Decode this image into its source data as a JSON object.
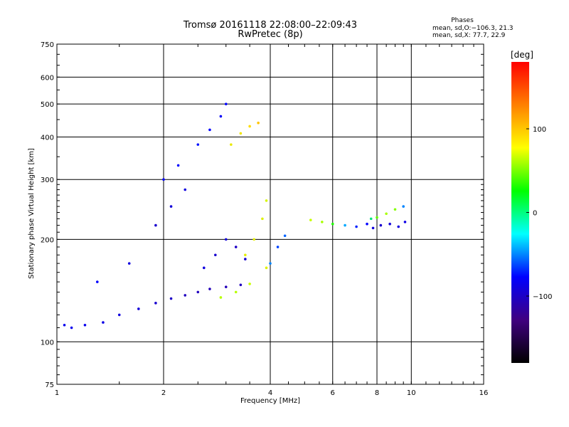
{
  "chart_data": {
    "type": "scatter",
    "title": "Tromsø 20161118 22:08:00–22:09:43",
    "subtitle": "RwPretec (8p)",
    "xlabel": "Frequency [MHz]",
    "ylabel": "Stationary phase Virtual Height [km]",
    "x_scale": "log",
    "y_scale": "log",
    "xlim": [
      1,
      16
    ],
    "ylim": [
      75,
      750
    ],
    "x_ticks": [
      "1",
      "2",
      "4",
      "6",
      "8",
      "10",
      "16"
    ],
    "x_tick_values": [
      1,
      2,
      4,
      6,
      8,
      10,
      16
    ],
    "y_ticks": [
      "75",
      "100",
      "200",
      "300",
      "400",
      "500",
      "600",
      "750"
    ],
    "y_tick_values": [
      75,
      100,
      200,
      300,
      400,
      500,
      600,
      750
    ],
    "grid": true,
    "legend": {
      "heading": "Phases",
      "lines": [
        "mean, sd,O:−106.3, 21.3",
        "mean, sd,X:  77.7, 22.9"
      ],
      "placement": "top-right"
    },
    "colorbar": {
      "label": "[deg]",
      "range": [
        -180,
        180
      ],
      "ticks": [
        "100",
        "0",
        "−100"
      ],
      "tick_values": [
        100,
        0,
        -100
      ],
      "colors": [
        "#ff0000",
        "#ff8000",
        "#ffff00",
        "#00ff00",
        "#00ffff",
        "#0000ff",
        "#400080",
        "#000000"
      ]
    },
    "point_groups": [
      {
        "x": [
          1.05,
          1.1,
          1.2,
          1.35,
          1.5,
          1.7,
          1.9,
          2.1,
          2.3,
          2.5,
          2.7,
          3.0,
          3.3
        ],
        "y": [
          112,
          110,
          112,
          114,
          120,
          125,
          130,
          134,
          137,
          140,
          143,
          145,
          147
        ],
        "phase": [
          -105,
          -105,
          -105,
          -108,
          -110,
          -112,
          -115,
          -118,
          -120,
          -120,
          -122,
          -122,
          -120
        ]
      },
      {
        "x": [
          1.3,
          1.6,
          1.9,
          2.1,
          2.3
        ],
        "y": [
          150,
          170,
          220,
          250,
          280
        ],
        "phase": [
          -100,
          -110,
          -115,
          -112,
          -110
        ]
      },
      {
        "x": [
          2.0,
          2.2,
          2.5,
          2.7,
          2.9,
          3.0
        ],
        "y": [
          300,
          330,
          380,
          420,
          460,
          500
        ],
        "phase": [
          -100,
          -98,
          -95,
          -100,
          -102,
          -100
        ]
      },
      {
        "x": [
          2.6,
          2.8,
          3.0,
          3.2,
          3.4
        ],
        "y": [
          165,
          180,
          200,
          190,
          175
        ],
        "phase": [
          -110,
          -115,
          -112,
          -118,
          -115
        ]
      },
      {
        "x": [
          2.9,
          3.2,
          3.5,
          3.9
        ],
        "y": [
          135,
          140,
          148,
          165
        ],
        "phase": [
          55,
          55,
          60,
          75
        ]
      },
      {
        "x": [
          3.4,
          3.6,
          3.8,
          3.9
        ],
        "y": [
          180,
          200,
          230,
          260
        ],
        "phase": [
          80,
          80,
          75,
          70
        ]
      },
      {
        "x": [
          3.1,
          3.3,
          3.5,
          3.7
        ],
        "y": [
          380,
          410,
          430,
          440
        ],
        "phase": [
          85,
          90,
          100,
          110
        ]
      },
      {
        "x": [
          4.0,
          4.2,
          4.4
        ],
        "y": [
          170,
          190,
          205
        ],
        "phase": [
          -60,
          -80,
          -70
        ]
      },
      {
        "x": [
          5.2,
          5.6,
          6.0,
          6.5,
          7.0,
          7.5
        ],
        "y": [
          228,
          225,
          222,
          220,
          218,
          222
        ],
        "phase": [
          60,
          50,
          10,
          -50,
          -90,
          -100
        ]
      },
      {
        "x": [
          7.7,
          8.0,
          8.5,
          9.0,
          9.5
        ],
        "y": [
          230,
          232,
          238,
          245,
          250
        ],
        "phase": [
          -20,
          30,
          50,
          40,
          -60
        ]
      },
      {
        "x": [
          7.8,
          8.2,
          8.7,
          9.2,
          9.6
        ],
        "y": [
          216,
          220,
          222,
          218,
          225
        ],
        "phase": [
          -110,
          -115,
          -112,
          -110,
          -108
        ]
      }
    ]
  }
}
